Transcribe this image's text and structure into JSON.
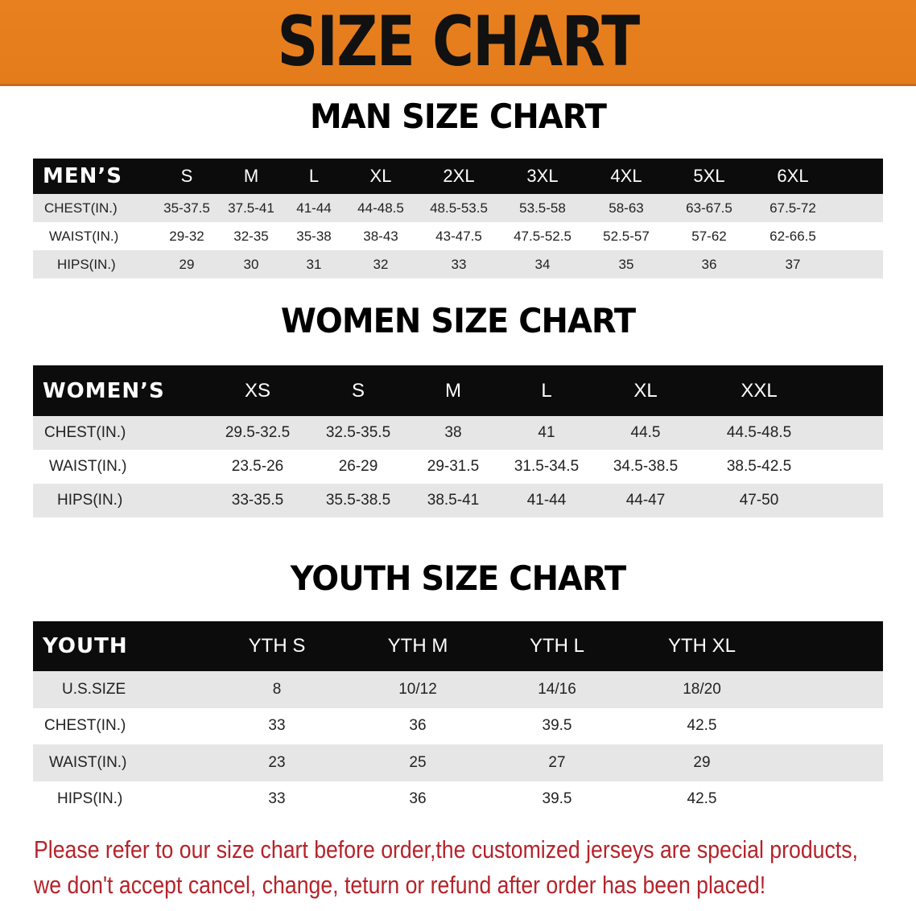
{
  "banner": {
    "title": "SIZE CHART",
    "color": "#e8801f"
  },
  "men": {
    "title": "MAN SIZE CHART",
    "header": [
      "MEN’S",
      "S",
      "M",
      "L",
      "XL",
      "2XL",
      "3XL",
      "4XL",
      "5XL",
      "6XL"
    ],
    "rows": [
      [
        "CHEST(IN.)",
        "35-37.5",
        "37.5-41",
        "41-44",
        "44-48.5",
        "48.5-53.5",
        "53.5-58",
        "58-63",
        "63-67.5",
        "67.5-72"
      ],
      [
        "WAIST(IN.)",
        "29-32",
        "32-35",
        "35-38",
        "38-43",
        "43-47.5",
        "47.5-52.5",
        "52.5-57",
        "57-62",
        "62-66.5"
      ],
      [
        "HIPS(IN.)",
        "29",
        "30",
        "31",
        "32",
        "33",
        "34",
        "35",
        "36",
        "37"
      ]
    ]
  },
  "women": {
    "title": "WOMEN SIZE CHART",
    "header": [
      "WOMEN’S",
      "XS",
      "S",
      "M",
      "L",
      "XL",
      "XXL"
    ],
    "rows": [
      [
        "CHEST(IN.)",
        "29.5-32.5",
        "32.5-35.5",
        "38",
        "41",
        "44.5",
        "44.5-48.5"
      ],
      [
        "WAIST(IN.)",
        "23.5-26",
        "26-29",
        "29-31.5",
        "31.5-34.5",
        "34.5-38.5",
        "38.5-42.5"
      ],
      [
        "HIPS(IN.)",
        "33-35.5",
        "35.5-38.5",
        "38.5-41",
        "41-44",
        "44-47",
        "47-50"
      ]
    ]
  },
  "youth": {
    "title": "YOUTH SIZE CHART",
    "header": [
      "YOUTH",
      "YTH S",
      "YTH M",
      "YTH L",
      "YTH XL"
    ],
    "rows": [
      [
        "U.S.SIZE",
        "8",
        "10/12",
        "14/16",
        "18/20"
      ],
      [
        "CHEST(IN.)",
        "33",
        "36",
        "39.5",
        "42.5"
      ],
      [
        "WAIST(IN.)",
        "23",
        "25",
        "27",
        "29"
      ],
      [
        "HIPS(IN.)",
        "33",
        "36",
        "39.5",
        "42.5"
      ]
    ]
  },
  "note": {
    "line1": "Please refer to our size chart before order,the customized jerseys are special products,",
    "line2": "we don't accept cancel, change, teturn or refund after order has been placed!",
    "color": "#b5232a"
  }
}
